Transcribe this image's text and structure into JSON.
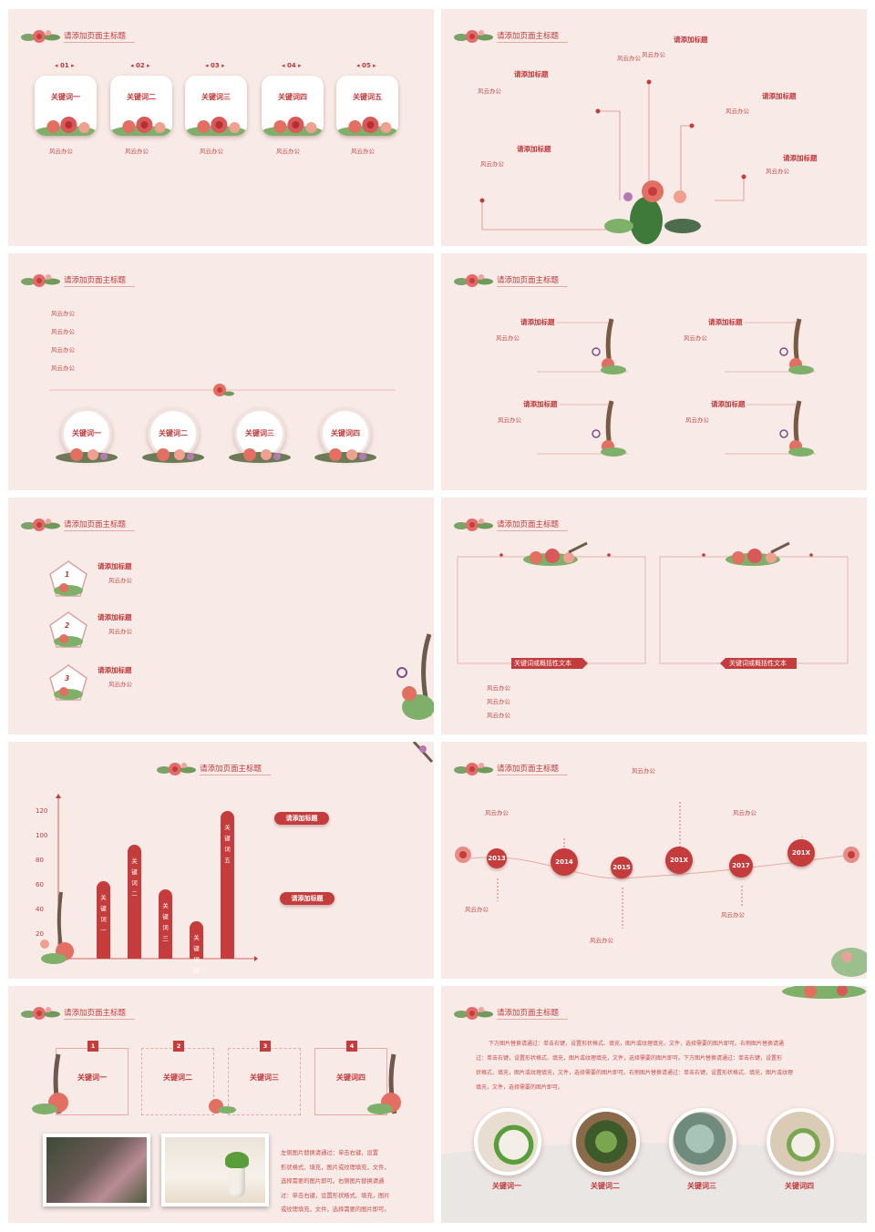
{
  "header_title": "请添加页面主标题",
  "s1": {
    "cards": [
      {
        "num": "01",
        "keyword": "关键词一",
        "caption": "风云办公"
      },
      {
        "num": "02",
        "keyword": "关键词二",
        "caption": "风云办公"
      },
      {
        "num": "03",
        "keyword": "关键词三",
        "caption": "风云办公"
      },
      {
        "num": "04",
        "keyword": "关键词四",
        "caption": "风云办公"
      },
      {
        "num": "05",
        "keyword": "关键词五",
        "caption": "风云办公"
      }
    ]
  },
  "s2": {
    "items": [
      {
        "title": "请添加标题",
        "text": "风云办公"
      },
      {
        "title": "请添加标题",
        "text": "风云办公"
      },
      {
        "title": "请添加标题",
        "text": "风云办公"
      },
      {
        "title": "请添加标题",
        "text": "风云办公"
      },
      {
        "title": "请添加标题",
        "text": "风云办公"
      }
    ],
    "top_text": "风云办公"
  },
  "s3": {
    "lines": [
      "风云办公",
      "风云办公",
      "风云办公",
      "风云办公"
    ],
    "keywords": [
      "关键词一",
      "关键词二",
      "关键词三",
      "关键词四"
    ]
  },
  "s4": {
    "items": [
      {
        "title": "请添加标题",
        "text": "风云办公"
      },
      {
        "title": "请添加标题",
        "text": "风云办公"
      },
      {
        "title": "请添加标题",
        "text": "风云办公"
      },
      {
        "title": "请添加标题",
        "text": "风云办公"
      }
    ]
  },
  "s5": {
    "items": [
      {
        "num": "1",
        "title": "请添加标题",
        "text": "风云办公"
      },
      {
        "num": "2",
        "title": "请添加标题",
        "text": "风云办公"
      },
      {
        "num": "3",
        "title": "请添加标题",
        "text": "风云办公"
      }
    ]
  },
  "s6": {
    "banner_left": "关键词或概括性文本",
    "banner_right": "关键词或概括性文本",
    "lines": [
      "风云办公",
      "风云办公",
      "风云办公"
    ]
  },
  "s7": {
    "pill1": "请添加标题",
    "pill2": "请添加标题"
  },
  "chart_data": {
    "type": "bar",
    "categories": [
      "关键词一",
      "关键词二",
      "关键词三",
      "关键词四",
      "关键词五"
    ],
    "values": [
      63,
      92,
      56,
      30,
      120
    ],
    "yticks": [
      20,
      40,
      60,
      80,
      100,
      120
    ],
    "ylim": [
      0,
      130
    ],
    "title": "",
    "xlabel": "",
    "ylabel": "",
    "grid": false
  },
  "s8": {
    "years": [
      "2013",
      "2014",
      "2015",
      "201X",
      "2017",
      "201X"
    ],
    "texts": [
      "风云办公",
      "风云办公",
      "风云办公",
      "风云办公",
      "风云办公",
      "风云办公"
    ]
  },
  "s9": {
    "boxes": [
      {
        "num": "1",
        "keyword": "关键词一"
      },
      {
        "num": "2",
        "keyword": "关键词二"
      },
      {
        "num": "3",
        "keyword": "关键词三"
      },
      {
        "num": "4",
        "keyword": "关键词四"
      }
    ],
    "paragraph": [
      "左侧图片替换请通过：单击右键，设置",
      "形状格式、填充，图片或纹理填充，文件，",
      "选择需要的图片即可。右侧图片替换请通",
      "过：单击右键，设置形状格式、填充，图片",
      "或纹理填充，文件，选择需要的图片即可。"
    ]
  },
  "s10": {
    "paragraph": [
      "下方图片替换请通过：单击右键，设置形状格式、填充，图片或纹理填充，文件，选择需要的图片即可。右侧图片替换请通",
      "过：单击右键，设置形状格式、填充，图片或纹理填充，文件，选择需要的图片即可。下方图片替换请通过：单击右键，设置形",
      "状格式、填充，图片或纹理填充，文件，选择需要的图片即可。右侧图片替换请通过：单击右键，设置形状格式、填充，图片或纹理",
      "填充，文件，选择需要的图片即可。"
    ],
    "keywords": [
      "关键词一",
      "关键词二",
      "关键词三",
      "关键词四"
    ]
  },
  "colors": {
    "accent": "#c53c3c",
    "background": "#f8ebe7",
    "line": "#e6a9a9"
  }
}
